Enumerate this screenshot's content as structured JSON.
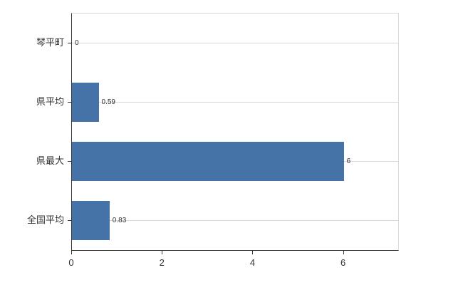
{
  "chart_data": {
    "type": "bar",
    "orientation": "horizontal",
    "title": "",
    "categories": [
      "琴平町",
      "県平均",
      "県最大",
      "全国平均"
    ],
    "values": [
      0,
      0.59,
      6,
      0.83
    ],
    "value_labels": [
      "0",
      "0.59",
      "6",
      "0.83"
    ],
    "xlim": [
      0,
      7.2
    ],
    "xticks": [
      0,
      2,
      4,
      6
    ],
    "xtick_labels": [
      "0",
      "2",
      "4",
      "6"
    ],
    "grid": true,
    "legend_position": "none"
  },
  "colors": {
    "bar": "#4572a7",
    "gridline": "#d9d9d9",
    "axis": "#333333",
    "text": "#333333",
    "background": "#ffffff"
  }
}
